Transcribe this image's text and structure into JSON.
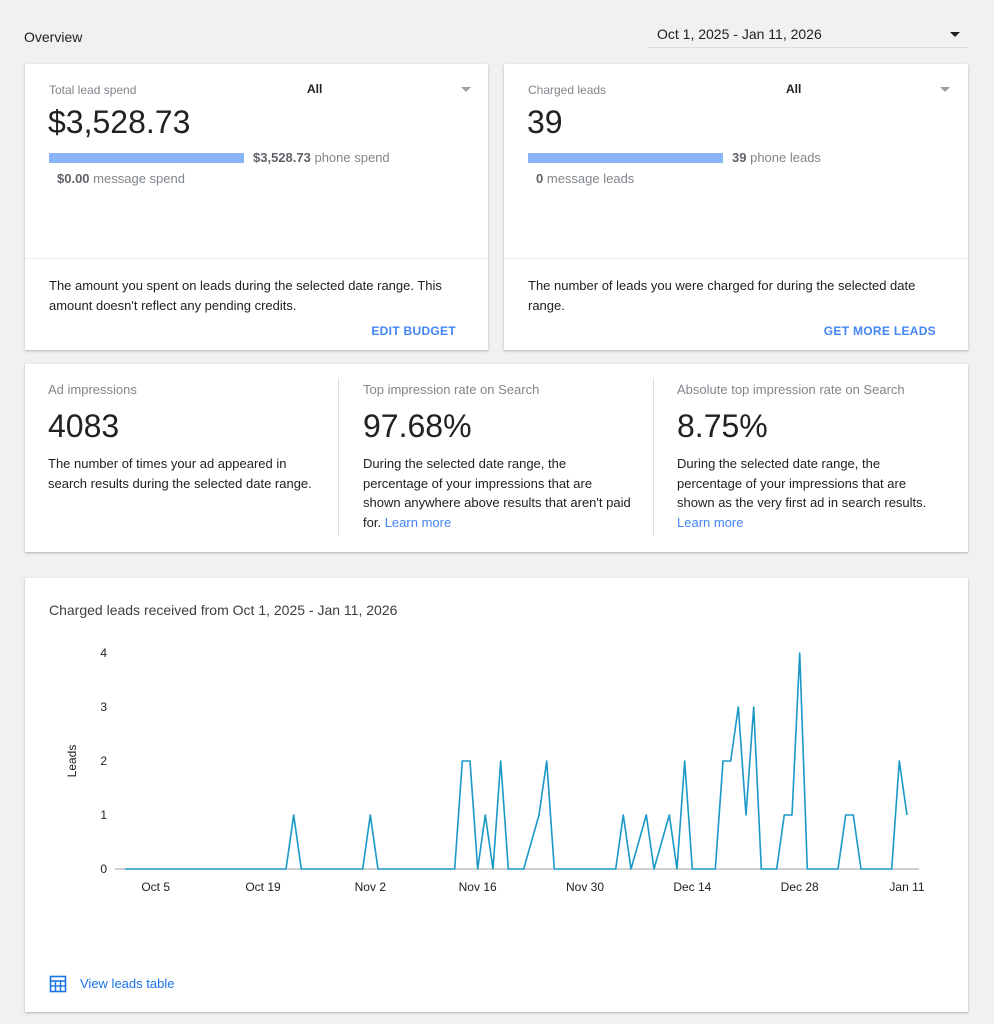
{
  "header": {
    "title": "Overview",
    "date_range": "Oct 1, 2025 - Jan 11, 2026"
  },
  "spend_card": {
    "label": "Total lead spend",
    "filter": "All",
    "value": "$3,528.73",
    "phone_amount": "$3,528.73",
    "phone_label": "phone spend",
    "message_amount": "$0.00",
    "message_label": "message spend",
    "description": "The amount you spent on leads during the selected date range. This amount doesn't reflect any pending credits.",
    "action": "EDIT BUDGET"
  },
  "leads_card": {
    "label": "Charged leads",
    "filter": "All",
    "value": "39",
    "phone_amount": "39",
    "phone_label": "phone leads",
    "message_amount": "0",
    "message_label": "message leads",
    "description": "The number of leads you were charged for during the selected date range.",
    "action": "GET MORE LEADS"
  },
  "metrics": [
    {
      "label": "Ad impressions",
      "value": "4083",
      "description": "The number of times your ad appeared in search results during the selected date range.",
      "link": ""
    },
    {
      "label": "Top impression rate on Search",
      "value": "97.68%",
      "description": "During the selected date range, the percentage of your impressions that are shown anywhere above results that aren't paid for.",
      "link": "Learn more"
    },
    {
      "label": "Absolute top impression rate on Search",
      "value": "8.75%",
      "description": "During the selected date range, the percentage of your impressions that are shown as the very first ad in search results.",
      "link": "Learn more"
    }
  ],
  "chart_card": {
    "title": "Charged leads received from Oct 1, 2025 - Jan 11, 2026",
    "view_table": "View leads table"
  },
  "colors": {
    "line": "#1a98c7",
    "bar": "#8ab4f8",
    "link": "#4285f4"
  },
  "chart_data": {
    "type": "line",
    "title": "Charged leads received from Oct 1, 2025 - Jan 11, 2026",
    "xlabel": "",
    "ylabel": "Leads",
    "x_start": "2025-10-01",
    "x_end": "2026-01-11",
    "xticks": [
      "Oct 5",
      "Oct 19",
      "Nov 2",
      "Nov 16",
      "Nov 30",
      "Dec 14",
      "Dec 28",
      "Jan 11"
    ],
    "yticks": [
      0,
      1,
      2,
      3,
      4
    ],
    "ylim": [
      0,
      4
    ],
    "grid": false,
    "legend": "none",
    "series": [
      {
        "name": "",
        "values": [
          {
            "x": "2025-10-01",
            "y": 0
          },
          {
            "x": "2025-10-22",
            "y": 0
          },
          {
            "x": "2025-10-23",
            "y": 1
          },
          {
            "x": "2025-10-24",
            "y": 0
          },
          {
            "x": "2025-11-01",
            "y": 0
          },
          {
            "x": "2025-11-02",
            "y": 1
          },
          {
            "x": "2025-11-03",
            "y": 0
          },
          {
            "x": "2025-11-13",
            "y": 0
          },
          {
            "x": "2025-11-14",
            "y": 2
          },
          {
            "x": "2025-11-15",
            "y": 2
          },
          {
            "x": "2025-11-16",
            "y": 0
          },
          {
            "x": "2025-11-17",
            "y": 1
          },
          {
            "x": "2025-11-18",
            "y": 0
          },
          {
            "x": "2025-11-19",
            "y": 2
          },
          {
            "x": "2025-11-20",
            "y": 0
          },
          {
            "x": "2025-11-22",
            "y": 0
          },
          {
            "x": "2025-11-24",
            "y": 1
          },
          {
            "x": "2025-11-25",
            "y": 2
          },
          {
            "x": "2025-11-26",
            "y": 0
          },
          {
            "x": "2025-12-04",
            "y": 0
          },
          {
            "x": "2025-12-05",
            "y": 1
          },
          {
            "x": "2025-12-06",
            "y": 0
          },
          {
            "x": "2025-12-08",
            "y": 1
          },
          {
            "x": "2025-12-09",
            "y": 0
          },
          {
            "x": "2025-12-11",
            "y": 1
          },
          {
            "x": "2025-12-12",
            "y": 0
          },
          {
            "x": "2025-12-13",
            "y": 2
          },
          {
            "x": "2025-12-14",
            "y": 0
          },
          {
            "x": "2025-12-17",
            "y": 0
          },
          {
            "x": "2025-12-18",
            "y": 2
          },
          {
            "x": "2025-12-19",
            "y": 2
          },
          {
            "x": "2025-12-20",
            "y": 3
          },
          {
            "x": "2025-12-21",
            "y": 1
          },
          {
            "x": "2025-12-22",
            "y": 3
          },
          {
            "x": "2025-12-23",
            "y": 0
          },
          {
            "x": "2025-12-25",
            "y": 0
          },
          {
            "x": "2025-12-26",
            "y": 1
          },
          {
            "x": "2025-12-27",
            "y": 1
          },
          {
            "x": "2025-12-28",
            "y": 4
          },
          {
            "x": "2025-12-29",
            "y": 0
          },
          {
            "x": "2026-01-02",
            "y": 0
          },
          {
            "x": "2026-01-03",
            "y": 1
          },
          {
            "x": "2026-01-04",
            "y": 1
          },
          {
            "x": "2026-01-05",
            "y": 0
          },
          {
            "x": "2026-01-09",
            "y": 0
          },
          {
            "x": "2026-01-10",
            "y": 2
          },
          {
            "x": "2026-01-11",
            "y": 1
          }
        ]
      }
    ]
  }
}
